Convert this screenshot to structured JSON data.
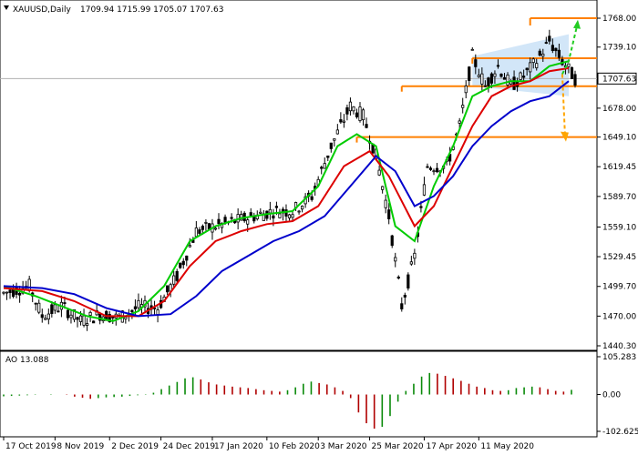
{
  "header": {
    "symbol_line": "XAUUSD,Daily",
    "ohlc_line": "1709.94 1715.99 1705.07 1707.63"
  },
  "oscillator": {
    "label": "AO 13.088",
    "ticks": [
      "105.283",
      "0.00",
      "-102.625"
    ],
    "range": [
      -102.625,
      105.283
    ]
  },
  "colors": {
    "bull": "#000000",
    "fast_ma": "#00cc00",
    "mid_ma": "#dd0000",
    "slow_ma": "#0000cc",
    "level": "#ff8000",
    "channel": "#bfdcf5",
    "up_arrow": "#22cc22",
    "down_arrow": "#ffa500",
    "ao_up": "#0a8a0a",
    "ao_down": "#b00000",
    "current_price_bg": "#ffffff"
  },
  "chart_data": [
    {
      "type": "candlestick",
      "title": "XAUUSD,Daily",
      "y_ticks": [
        "1768.00",
        "1739.10",
        "1707.63",
        "1678.00",
        "1649.10",
        "1619.45",
        "1589.70",
        "1559.10",
        "1529.45",
        "1499.70",
        "1470.00",
        "1440.30"
      ],
      "ylim": [
        1440.3,
        1768.0
      ],
      "x_ticks": [
        "17 Oct 2019",
        "8 Nov 2019",
        "2 Dec 2019",
        "24 Dec 2019",
        "17 Jan 2020",
        "10 Feb 2020",
        "3 Mar 2020",
        "25 Mar 2020",
        "17 Apr 2020",
        "11 May 2020"
      ],
      "current_price": 1707.63,
      "horizontal_levels": [
        1768.0,
        1728.0,
        1700.0,
        1649.1
      ],
      "price_path": [
        {
          "x": 0,
          "y": 1493
        },
        {
          "x": 8,
          "y": 1500
        },
        {
          "x": 12,
          "y": 1470
        },
        {
          "x": 18,
          "y": 1480
        },
        {
          "x": 24,
          "y": 1465
        },
        {
          "x": 30,
          "y": 1472
        },
        {
          "x": 36,
          "y": 1468
        },
        {
          "x": 42,
          "y": 1479
        },
        {
          "x": 48,
          "y": 1478
        },
        {
          "x": 54,
          "y": 1510
        },
        {
          "x": 60,
          "y": 1555
        },
        {
          "x": 66,
          "y": 1560
        },
        {
          "x": 72,
          "y": 1565
        },
        {
          "x": 78,
          "y": 1570
        },
        {
          "x": 84,
          "y": 1575
        },
        {
          "x": 90,
          "y": 1575
        },
        {
          "x": 96,
          "y": 1590
        },
        {
          "x": 102,
          "y": 1640
        },
        {
          "x": 108,
          "y": 1680
        },
        {
          "x": 112,
          "y": 1670
        },
        {
          "x": 116,
          "y": 1630
        },
        {
          "x": 120,
          "y": 1570
        },
        {
          "x": 124,
          "y": 1480
        },
        {
          "x": 128,
          "y": 1530
        },
        {
          "x": 132,
          "y": 1620
        },
        {
          "x": 138,
          "y": 1620
        },
        {
          "x": 142,
          "y": 1660
        },
        {
          "x": 146,
          "y": 1730
        },
        {
          "x": 150,
          "y": 1700
        },
        {
          "x": 154,
          "y": 1720
        },
        {
          "x": 158,
          "y": 1700
        },
        {
          "x": 162,
          "y": 1710
        },
        {
          "x": 166,
          "y": 1725
        },
        {
          "x": 170,
          "y": 1745
        },
        {
          "x": 174,
          "y": 1725
        },
        {
          "x": 178,
          "y": 1707.63
        }
      ],
      "series": [
        {
          "name": "",
          "color": "#00cc00",
          "values": [
            {
              "x": 0,
              "y": 1500
            },
            {
              "x": 10,
              "y": 1490
            },
            {
              "x": 18,
              "y": 1480
            },
            {
              "x": 26,
              "y": 1470
            },
            {
              "x": 34,
              "y": 1465
            },
            {
              "x": 42,
              "y": 1475
            },
            {
              "x": 50,
              "y": 1500
            },
            {
              "x": 58,
              "y": 1545
            },
            {
              "x": 66,
              "y": 1560
            },
            {
              "x": 74,
              "y": 1568
            },
            {
              "x": 82,
              "y": 1572
            },
            {
              "x": 90,
              "y": 1575
            },
            {
              "x": 98,
              "y": 1600
            },
            {
              "x": 104,
              "y": 1640
            },
            {
              "x": 110,
              "y": 1652
            },
            {
              "x": 116,
              "y": 1640
            },
            {
              "x": 122,
              "y": 1560
            },
            {
              "x": 128,
              "y": 1545
            },
            {
              "x": 134,
              "y": 1600
            },
            {
              "x": 140,
              "y": 1640
            },
            {
              "x": 146,
              "y": 1690
            },
            {
              "x": 152,
              "y": 1700
            },
            {
              "x": 158,
              "y": 1705
            },
            {
              "x": 164,
              "y": 1705
            },
            {
              "x": 170,
              "y": 1720
            },
            {
              "x": 176,
              "y": 1725
            }
          ]
        },
        {
          "name": "",
          "color": "#dd0000",
          "values": [
            {
              "x": 0,
              "y": 1498
            },
            {
              "x": 12,
              "y": 1495
            },
            {
              "x": 22,
              "y": 1485
            },
            {
              "x": 32,
              "y": 1470
            },
            {
              "x": 42,
              "y": 1470
            },
            {
              "x": 50,
              "y": 1485
            },
            {
              "x": 58,
              "y": 1520
            },
            {
              "x": 66,
              "y": 1545
            },
            {
              "x": 74,
              "y": 1555
            },
            {
              "x": 82,
              "y": 1562
            },
            {
              "x": 90,
              "y": 1565
            },
            {
              "x": 98,
              "y": 1580
            },
            {
              "x": 106,
              "y": 1620
            },
            {
              "x": 114,
              "y": 1635
            },
            {
              "x": 120,
              "y": 1610
            },
            {
              "x": 128,
              "y": 1560
            },
            {
              "x": 134,
              "y": 1580
            },
            {
              "x": 140,
              "y": 1620
            },
            {
              "x": 146,
              "y": 1660
            },
            {
              "x": 152,
              "y": 1690
            },
            {
              "x": 158,
              "y": 1700
            },
            {
              "x": 164,
              "y": 1705
            },
            {
              "x": 170,
              "y": 1715
            },
            {
              "x": 176,
              "y": 1718
            }
          ]
        },
        {
          "name": "",
          "color": "#0000cc",
          "values": [
            {
              "x": 0,
              "y": 1500
            },
            {
              "x": 12,
              "y": 1498
            },
            {
              "x": 22,
              "y": 1492
            },
            {
              "x": 32,
              "y": 1478
            },
            {
              "x": 42,
              "y": 1470
            },
            {
              "x": 52,
              "y": 1472
            },
            {
              "x": 60,
              "y": 1490
            },
            {
              "x": 68,
              "y": 1515
            },
            {
              "x": 76,
              "y": 1530
            },
            {
              "x": 84,
              "y": 1545
            },
            {
              "x": 92,
              "y": 1555
            },
            {
              "x": 100,
              "y": 1570
            },
            {
              "x": 108,
              "y": 1600
            },
            {
              "x": 116,
              "y": 1630
            },
            {
              "x": 122,
              "y": 1615
            },
            {
              "x": 128,
              "y": 1580
            },
            {
              "x": 134,
              "y": 1590
            },
            {
              "x": 140,
              "y": 1610
            },
            {
              "x": 146,
              "y": 1640
            },
            {
              "x": 152,
              "y": 1660
            },
            {
              "x": 158,
              "y": 1675
            },
            {
              "x": 164,
              "y": 1685
            },
            {
              "x": 170,
              "y": 1690
            },
            {
              "x": 176,
              "y": 1705
            }
          ]
        }
      ]
    },
    {
      "type": "bar",
      "title": "AO 13.088",
      "ylim": [
        -102.625,
        105.283
      ],
      "y_ticks": [
        "105.283",
        "0.00",
        "-102.625"
      ],
      "values": [
        -5,
        -4,
        -3,
        -2,
        -1,
        0,
        1,
        0,
        -1,
        -6,
        -9,
        -12,
        -10,
        -8,
        -7,
        -6,
        -4,
        -2,
        1,
        5,
        15,
        25,
        35,
        45,
        48,
        42,
        34,
        28,
        25,
        22,
        20,
        18,
        15,
        12,
        10,
        8,
        12,
        20,
        30,
        36,
        32,
        28,
        20,
        10,
        -10,
        -50,
        -80,
        -95,
        -90,
        -60,
        -20,
        10,
        30,
        50,
        60,
        58,
        52,
        45,
        38,
        30,
        22,
        18,
        12,
        10,
        12,
        18,
        20,
        22,
        20,
        15,
        10,
        8,
        13
      ]
    }
  ]
}
